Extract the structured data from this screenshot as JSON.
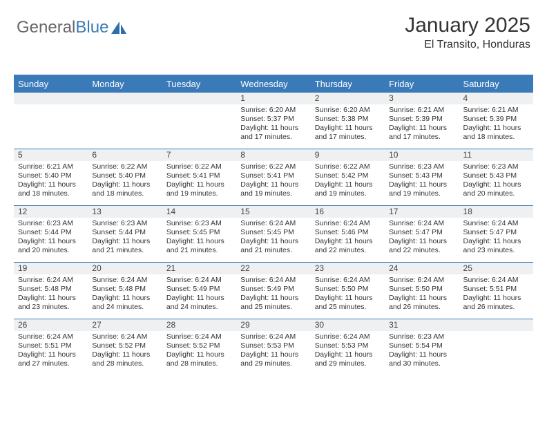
{
  "logo": {
    "part1": "General",
    "part2": "Blue"
  },
  "title": "January 2025",
  "subtitle": "El Transito, Honduras",
  "colors": {
    "header_bg": "#3a7ab8",
    "header_text": "#ffffff",
    "daynum_bg": "#eef0f2",
    "border": "#3a7ab8",
    "body_text": "#333333",
    "logo_gray": "#666666",
    "logo_blue": "#3a7ab8",
    "page_bg": "#ffffff"
  },
  "typography": {
    "title_fontsize": 30,
    "subtitle_fontsize": 16,
    "header_fontsize": 13,
    "daynum_fontsize": 12,
    "cell_fontsize": 10.5
  },
  "weekdays": [
    "Sunday",
    "Monday",
    "Tuesday",
    "Wednesday",
    "Thursday",
    "Friday",
    "Saturday"
  ],
  "weeks": [
    [
      {
        "day": "",
        "lines": []
      },
      {
        "day": "",
        "lines": []
      },
      {
        "day": "",
        "lines": []
      },
      {
        "day": "1",
        "lines": [
          "Sunrise: 6:20 AM",
          "Sunset: 5:37 PM",
          "Daylight: 11 hours",
          "and 17 minutes."
        ]
      },
      {
        "day": "2",
        "lines": [
          "Sunrise: 6:20 AM",
          "Sunset: 5:38 PM",
          "Daylight: 11 hours",
          "and 17 minutes."
        ]
      },
      {
        "day": "3",
        "lines": [
          "Sunrise: 6:21 AM",
          "Sunset: 5:39 PM",
          "Daylight: 11 hours",
          "and 17 minutes."
        ]
      },
      {
        "day": "4",
        "lines": [
          "Sunrise: 6:21 AM",
          "Sunset: 5:39 PM",
          "Daylight: 11 hours",
          "and 18 minutes."
        ]
      }
    ],
    [
      {
        "day": "5",
        "lines": [
          "Sunrise: 6:21 AM",
          "Sunset: 5:40 PM",
          "Daylight: 11 hours",
          "and 18 minutes."
        ]
      },
      {
        "day": "6",
        "lines": [
          "Sunrise: 6:22 AM",
          "Sunset: 5:40 PM",
          "Daylight: 11 hours",
          "and 18 minutes."
        ]
      },
      {
        "day": "7",
        "lines": [
          "Sunrise: 6:22 AM",
          "Sunset: 5:41 PM",
          "Daylight: 11 hours",
          "and 19 minutes."
        ]
      },
      {
        "day": "8",
        "lines": [
          "Sunrise: 6:22 AM",
          "Sunset: 5:41 PM",
          "Daylight: 11 hours",
          "and 19 minutes."
        ]
      },
      {
        "day": "9",
        "lines": [
          "Sunrise: 6:22 AM",
          "Sunset: 5:42 PM",
          "Daylight: 11 hours",
          "and 19 minutes."
        ]
      },
      {
        "day": "10",
        "lines": [
          "Sunrise: 6:23 AM",
          "Sunset: 5:43 PM",
          "Daylight: 11 hours",
          "and 19 minutes."
        ]
      },
      {
        "day": "11",
        "lines": [
          "Sunrise: 6:23 AM",
          "Sunset: 5:43 PM",
          "Daylight: 11 hours",
          "and 20 minutes."
        ]
      }
    ],
    [
      {
        "day": "12",
        "lines": [
          "Sunrise: 6:23 AM",
          "Sunset: 5:44 PM",
          "Daylight: 11 hours",
          "and 20 minutes."
        ]
      },
      {
        "day": "13",
        "lines": [
          "Sunrise: 6:23 AM",
          "Sunset: 5:44 PM",
          "Daylight: 11 hours",
          "and 21 minutes."
        ]
      },
      {
        "day": "14",
        "lines": [
          "Sunrise: 6:23 AM",
          "Sunset: 5:45 PM",
          "Daylight: 11 hours",
          "and 21 minutes."
        ]
      },
      {
        "day": "15",
        "lines": [
          "Sunrise: 6:24 AM",
          "Sunset: 5:45 PM",
          "Daylight: 11 hours",
          "and 21 minutes."
        ]
      },
      {
        "day": "16",
        "lines": [
          "Sunrise: 6:24 AM",
          "Sunset: 5:46 PM",
          "Daylight: 11 hours",
          "and 22 minutes."
        ]
      },
      {
        "day": "17",
        "lines": [
          "Sunrise: 6:24 AM",
          "Sunset: 5:47 PM",
          "Daylight: 11 hours",
          "and 22 minutes."
        ]
      },
      {
        "day": "18",
        "lines": [
          "Sunrise: 6:24 AM",
          "Sunset: 5:47 PM",
          "Daylight: 11 hours",
          "and 23 minutes."
        ]
      }
    ],
    [
      {
        "day": "19",
        "lines": [
          "Sunrise: 6:24 AM",
          "Sunset: 5:48 PM",
          "Daylight: 11 hours",
          "and 23 minutes."
        ]
      },
      {
        "day": "20",
        "lines": [
          "Sunrise: 6:24 AM",
          "Sunset: 5:48 PM",
          "Daylight: 11 hours",
          "and 24 minutes."
        ]
      },
      {
        "day": "21",
        "lines": [
          "Sunrise: 6:24 AM",
          "Sunset: 5:49 PM",
          "Daylight: 11 hours",
          "and 24 minutes."
        ]
      },
      {
        "day": "22",
        "lines": [
          "Sunrise: 6:24 AM",
          "Sunset: 5:49 PM",
          "Daylight: 11 hours",
          "and 25 minutes."
        ]
      },
      {
        "day": "23",
        "lines": [
          "Sunrise: 6:24 AM",
          "Sunset: 5:50 PM",
          "Daylight: 11 hours",
          "and 25 minutes."
        ]
      },
      {
        "day": "24",
        "lines": [
          "Sunrise: 6:24 AM",
          "Sunset: 5:50 PM",
          "Daylight: 11 hours",
          "and 26 minutes."
        ]
      },
      {
        "day": "25",
        "lines": [
          "Sunrise: 6:24 AM",
          "Sunset: 5:51 PM",
          "Daylight: 11 hours",
          "and 26 minutes."
        ]
      }
    ],
    [
      {
        "day": "26",
        "lines": [
          "Sunrise: 6:24 AM",
          "Sunset: 5:51 PM",
          "Daylight: 11 hours",
          "and 27 minutes."
        ]
      },
      {
        "day": "27",
        "lines": [
          "Sunrise: 6:24 AM",
          "Sunset: 5:52 PM",
          "Daylight: 11 hours",
          "and 28 minutes."
        ]
      },
      {
        "day": "28",
        "lines": [
          "Sunrise: 6:24 AM",
          "Sunset: 5:52 PM",
          "Daylight: 11 hours",
          "and 28 minutes."
        ]
      },
      {
        "day": "29",
        "lines": [
          "Sunrise: 6:24 AM",
          "Sunset: 5:53 PM",
          "Daylight: 11 hours",
          "and 29 minutes."
        ]
      },
      {
        "day": "30",
        "lines": [
          "Sunrise: 6:24 AM",
          "Sunset: 5:53 PM",
          "Daylight: 11 hours",
          "and 29 minutes."
        ]
      },
      {
        "day": "31",
        "lines": [
          "Sunrise: 6:23 AM",
          "Sunset: 5:54 PM",
          "Daylight: 11 hours",
          "and 30 minutes."
        ]
      },
      {
        "day": "",
        "lines": []
      }
    ]
  ]
}
